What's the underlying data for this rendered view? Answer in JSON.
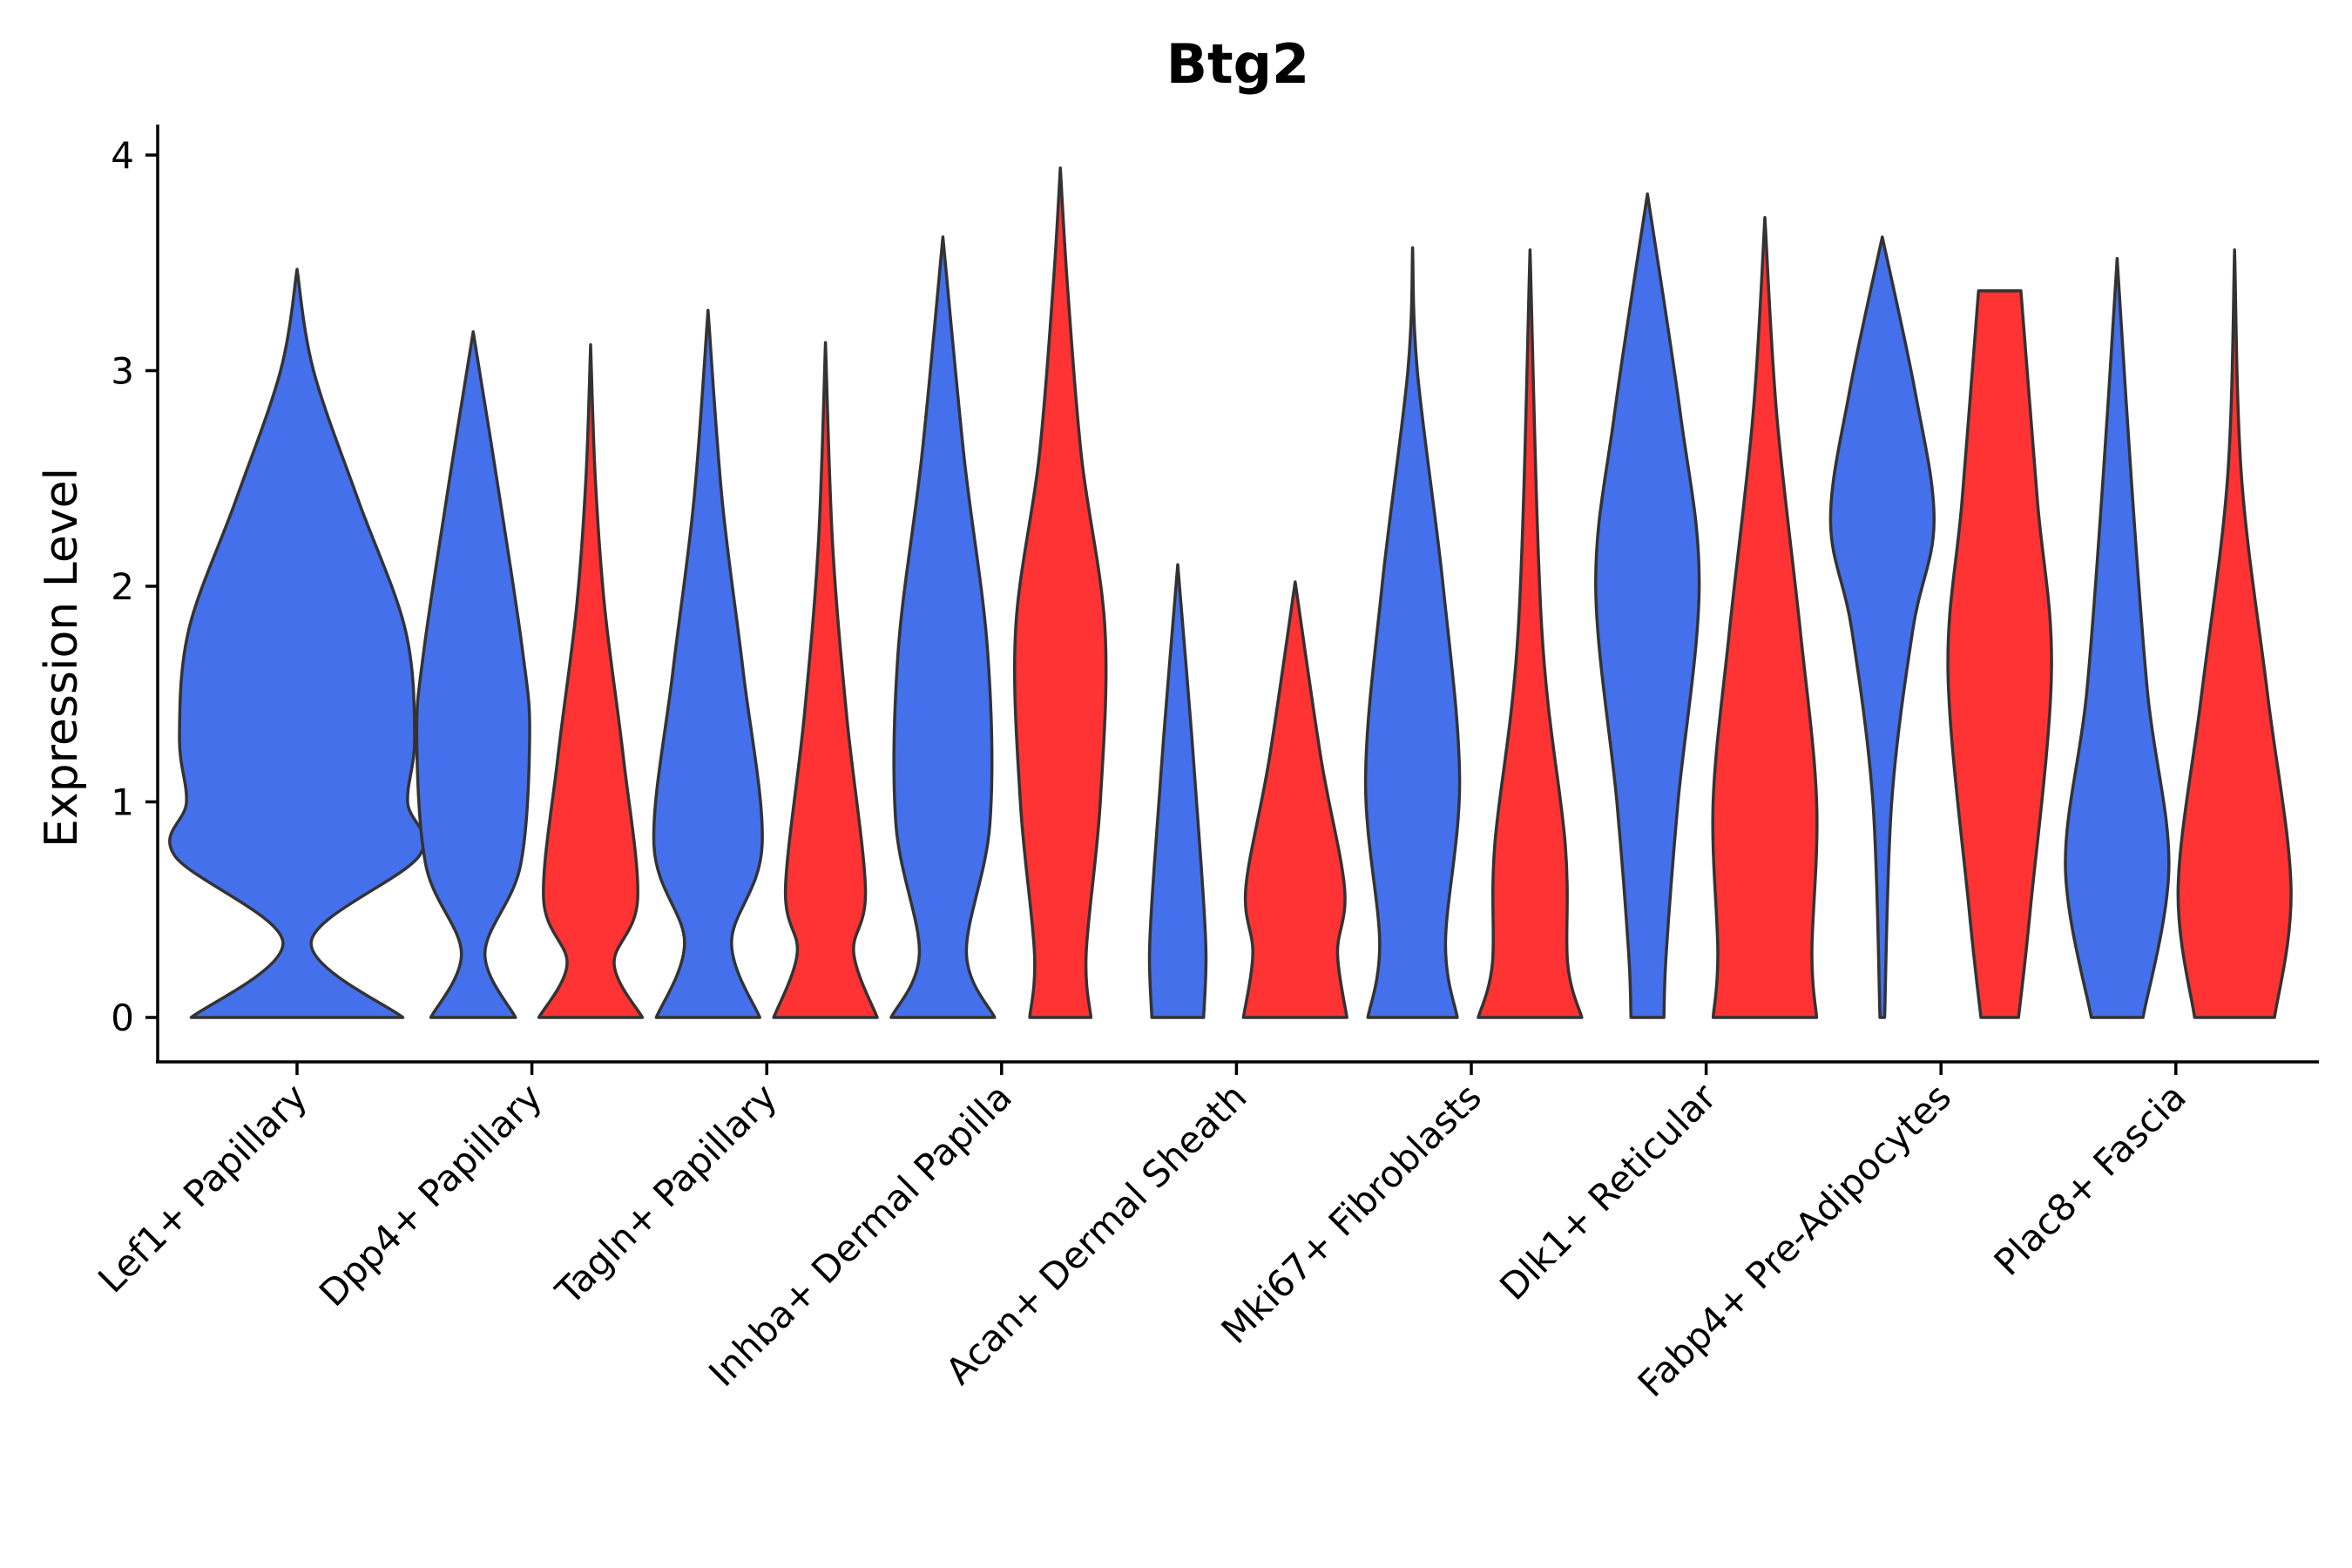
{
  "chart_data": {
    "type": "violin",
    "title": "Btg2",
    "xlabel": "",
    "ylabel": "Expression Level",
    "ylim": [
      -0.2,
      4.15
    ],
    "yticks": [
      0,
      1,
      2,
      3,
      4
    ],
    "grid": false,
    "legend": "none",
    "colors": {
      "a": "#4470EC",
      "b": "#FF3333"
    },
    "categories": [
      "Lef1+ Papillary",
      "Dpp4+ Papillary",
      "Tagln+ Papillary",
      "Inhba+ Dermal Papilla",
      "Acan+ Dermal Sheath",
      "Mki67+ Fibroblasts",
      "Dlk1+ Reticular",
      "Fabp4+ Pre-Adipocytes",
      "Plac8+ Fascia"
    ],
    "groups": [
      {
        "category_index": 0,
        "side": "single",
        "color": "a",
        "max": 3.47,
        "width_profile": [
          [
            0,
            0.45
          ],
          [
            0.35,
            0.06
          ],
          [
            0.75,
            0.52
          ],
          [
            1.0,
            0.47
          ],
          [
            1.3,
            0.5
          ],
          [
            1.8,
            0.46
          ],
          [
            2.4,
            0.26
          ],
          [
            3.0,
            0.07
          ],
          [
            3.47,
            0.0
          ]
        ]
      },
      {
        "category_index": 1,
        "side": "left",
        "color": "a",
        "max": 3.18,
        "width_profile": [
          [
            0,
            0.18
          ],
          [
            0.3,
            0.05
          ],
          [
            0.7,
            0.2
          ],
          [
            1.3,
            0.24
          ],
          [
            1.7,
            0.21
          ],
          [
            2.5,
            0.1
          ],
          [
            3.18,
            0.0
          ]
        ]
      },
      {
        "category_index": 1,
        "side": "right",
        "color": "b",
        "max": 3.12,
        "width_profile": [
          [
            0,
            0.22
          ],
          [
            0.25,
            0.1
          ],
          [
            0.55,
            0.2
          ],
          [
            1.2,
            0.14
          ],
          [
            1.9,
            0.06
          ],
          [
            2.5,
            0.02
          ],
          [
            3.12,
            0.0
          ]
        ]
      },
      {
        "category_index": 2,
        "side": "left",
        "color": "a",
        "max": 3.28,
        "width_profile": [
          [
            0,
            0.22
          ],
          [
            0.35,
            0.1
          ],
          [
            0.8,
            0.23
          ],
          [
            1.6,
            0.15
          ],
          [
            2.4,
            0.06
          ],
          [
            3.28,
            0.0
          ]
        ]
      },
      {
        "category_index": 2,
        "side": "right",
        "color": "b",
        "max": 3.13,
        "width_profile": [
          [
            0,
            0.22
          ],
          [
            0.3,
            0.12
          ],
          [
            0.6,
            0.17
          ],
          [
            1.4,
            0.09
          ],
          [
            2.2,
            0.03
          ],
          [
            3.13,
            0.0
          ]
        ]
      },
      {
        "category_index": 3,
        "side": "left",
        "color": "a",
        "max": 3.62,
        "width_profile": [
          [
            0,
            0.22
          ],
          [
            0.3,
            0.1
          ],
          [
            0.9,
            0.2
          ],
          [
            1.7,
            0.19
          ],
          [
            2.6,
            0.09
          ],
          [
            3.62,
            0.0
          ]
        ]
      },
      {
        "category_index": 3,
        "side": "right",
        "color": "b",
        "max": 3.94,
        "width_profile": [
          [
            0,
            0.13
          ],
          [
            0.3,
            0.11
          ],
          [
            1.0,
            0.17
          ],
          [
            1.8,
            0.19
          ],
          [
            2.6,
            0.09
          ],
          [
            3.4,
            0.03
          ],
          [
            3.94,
            0.0
          ]
        ]
      },
      {
        "category_index": 4,
        "side": "left",
        "color": "a",
        "max": 2.1,
        "width_profile": [
          [
            0,
            0.11
          ],
          [
            0.3,
            0.12
          ],
          [
            0.7,
            0.1
          ],
          [
            1.3,
            0.06
          ],
          [
            2.1,
            0.0
          ]
        ]
      },
      {
        "category_index": 4,
        "side": "right",
        "color": "b",
        "max": 2.02,
        "width_profile": [
          [
            0,
            0.22
          ],
          [
            0.3,
            0.18
          ],
          [
            0.6,
            0.21
          ],
          [
            1.2,
            0.11
          ],
          [
            2.02,
            0.0
          ]
        ]
      },
      {
        "category_index": 5,
        "side": "left",
        "color": "a",
        "max": 3.57,
        "width_profile": [
          [
            0,
            0.19
          ],
          [
            0.35,
            0.14
          ],
          [
            1.1,
            0.2
          ],
          [
            2.0,
            0.13
          ],
          [
            3.0,
            0.02
          ],
          [
            3.57,
            0.0
          ]
        ]
      },
      {
        "category_index": 5,
        "side": "right",
        "color": "b",
        "max": 3.56,
        "width_profile": [
          [
            0,
            0.22
          ],
          [
            0.25,
            0.16
          ],
          [
            0.8,
            0.15
          ],
          [
            1.8,
            0.05
          ],
          [
            3.56,
            0.0
          ]
        ]
      },
      {
        "category_index": 6,
        "side": "left",
        "color": "a",
        "max": 3.82,
        "width_profile": [
          [
            0,
            0.07
          ],
          [
            0.3,
            0.08
          ],
          [
            1.0,
            0.13
          ],
          [
            2.0,
            0.22
          ],
          [
            2.8,
            0.14
          ],
          [
            3.82,
            0.0
          ]
        ]
      },
      {
        "category_index": 6,
        "side": "right",
        "color": "b",
        "max": 3.71,
        "width_profile": [
          [
            0,
            0.22
          ],
          [
            0.3,
            0.2
          ],
          [
            1.0,
            0.22
          ],
          [
            1.8,
            0.15
          ],
          [
            2.8,
            0.05
          ],
          [
            3.71,
            0.0
          ]
        ]
      },
      {
        "category_index": 7,
        "side": "left",
        "color": "a",
        "max": 3.62,
        "width_profile": [
          [
            0,
            0.01
          ],
          [
            1.0,
            0.04
          ],
          [
            1.8,
            0.13
          ],
          [
            2.3,
            0.22
          ],
          [
            2.9,
            0.14
          ],
          [
            3.62,
            0.0
          ]
        ]
      },
      {
        "category_index": 7,
        "side": "right",
        "color": "b",
        "max": 3.37,
        "width_profile": [
          [
            0,
            0.08
          ],
          [
            0.5,
            0.13
          ],
          [
            1.6,
            0.22
          ],
          [
            2.4,
            0.16
          ],
          [
            3.37,
            0.09
          ]
        ]
      },
      {
        "category_index": 8,
        "side": "left",
        "color": "a",
        "max": 3.52,
        "width_profile": [
          [
            0,
            0.11
          ],
          [
            0.7,
            0.22
          ],
          [
            1.5,
            0.13
          ],
          [
            2.5,
            0.06
          ],
          [
            3.52,
            0.0
          ]
        ]
      },
      {
        "category_index": 8,
        "side": "right",
        "color": "b",
        "max": 3.56,
        "width_profile": [
          [
            0,
            0.17
          ],
          [
            0.6,
            0.24
          ],
          [
            1.5,
            0.14
          ],
          [
            2.5,
            0.03
          ],
          [
            3.56,
            0.0
          ]
        ]
      }
    ]
  }
}
